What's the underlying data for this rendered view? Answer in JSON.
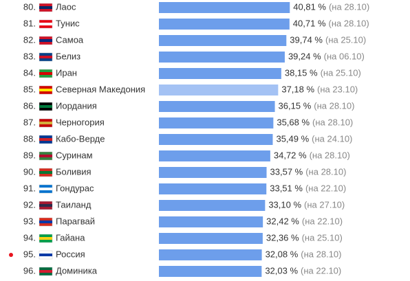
{
  "chart_data": {
    "type": "hbar",
    "ranks": [
      "80.",
      "81.",
      "82.",
      "83.",
      "84.",
      "85.",
      "86.",
      "87.",
      "88.",
      "89.",
      "90.",
      "91.",
      "92.",
      "93.",
      "94.",
      "95.",
      "96."
    ],
    "categories": [
      "Лаос",
      "Тунис",
      "Самоа",
      "Белиз",
      "Иран",
      "Северная Македония",
      "Иордания",
      "Черногория",
      "Кабо-Верде",
      "Суринам",
      "Боливия",
      "Гондурас",
      "Таиланд",
      "Парагвай",
      "Гайана",
      "Россия",
      "Доминика"
    ],
    "values": [
      40.81,
      40.71,
      39.74,
      39.24,
      38.15,
      37.18,
      36.15,
      35.68,
      35.49,
      34.72,
      33.57,
      33.51,
      33.1,
      32.42,
      32.36,
      32.08,
      32.03
    ],
    "value_labels": [
      "40,81 %",
      "40,71 %",
      "39,74 %",
      "39,24 %",
      "38,15 %",
      "37,18 %",
      "36,15 %",
      "35,68 %",
      "35,49 %",
      "34,72 %",
      "33,57 %",
      "33,51 %",
      "33,10 %",
      "32,42 %",
      "32,36 %",
      "32,08 %",
      "32,03 %"
    ],
    "notes": [
      "(на 28.10)",
      "(на 28.10)",
      "(на 25.10)",
      "(на 06.10)",
      "(на 25.10)",
      "(на 23.10)",
      "(на 28.10)",
      "(на 28.10)",
      "(на 24.10)",
      "(на 28.10)",
      "(на 28.10)",
      "(на 22.10)",
      "(на 27.10)",
      "(на 22.10)",
      "(на 25.10)",
      "(на 28.10)",
      "(на 22.10)"
    ],
    "xlim": [
      0,
      80
    ],
    "color": "#6d9eeb",
    "selected": 5,
    "selected_color": "#a4c2f4",
    "dot_row": 15,
    "dot_color": "#e8141e"
  }
}
